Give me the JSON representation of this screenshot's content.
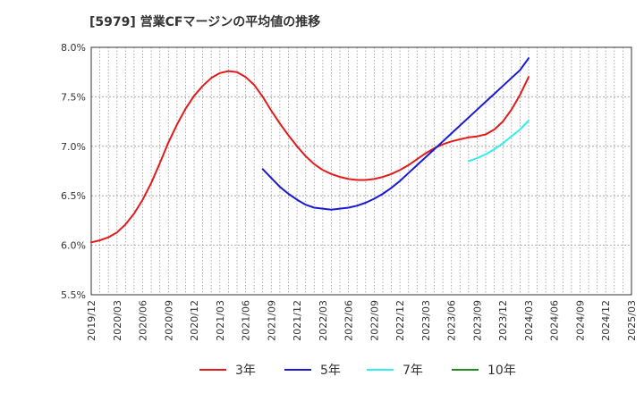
{
  "chart_data": {
    "type": "line",
    "title": "[5979]  営業CFマージンの平均値の推移",
    "xlabel": "",
    "ylabel": "",
    "x_ticks": [
      "2019/12",
      "2020/03",
      "2020/06",
      "2020/09",
      "2020/12",
      "2021/03",
      "2021/06",
      "2021/09",
      "2021/12",
      "2022/03",
      "2022/06",
      "2022/09",
      "2022/12",
      "2023/03",
      "2023/06",
      "2023/09",
      "2023/12",
      "2024/03",
      "2024/06",
      "2024/09",
      "2024/12",
      "2025/03"
    ],
    "y_ticks": [
      "5.5%",
      "6.0%",
      "6.5%",
      "7.0%",
      "7.5%",
      "8.0%"
    ],
    "ylim": [
      5.5,
      8.0
    ],
    "grid": true,
    "legend_position": "bottom",
    "series": [
      {
        "name": "3年",
        "color": "#e31a1c",
        "points": [
          [
            "2019/12",
            6.03
          ],
          [
            "2020/01",
            6.05
          ],
          [
            "2020/02",
            6.08
          ],
          [
            "2020/03",
            6.13
          ],
          [
            "2020/04",
            6.21
          ],
          [
            "2020/05",
            6.32
          ],
          [
            "2020/06",
            6.46
          ],
          [
            "2020/07",
            6.63
          ],
          [
            "2020/08",
            6.83
          ],
          [
            "2020/09",
            7.04
          ],
          [
            "2020/10",
            7.22
          ],
          [
            "2020/11",
            7.38
          ],
          [
            "2020/12",
            7.51
          ],
          [
            "2021/01",
            7.61
          ],
          [
            "2021/02",
            7.69
          ],
          [
            "2021/03",
            7.74
          ],
          [
            "2021/04",
            7.76
          ],
          [
            "2021/05",
            7.75
          ],
          [
            "2021/06",
            7.7
          ],
          [
            "2021/07",
            7.62
          ],
          [
            "2021/08",
            7.5
          ],
          [
            "2021/09",
            7.36
          ],
          [
            "2021/10",
            7.23
          ],
          [
            "2021/11",
            7.11
          ],
          [
            "2021/12",
            7.0
          ],
          [
            "2022/01",
            6.9
          ],
          [
            "2022/02",
            6.82
          ],
          [
            "2022/03",
            6.76
          ],
          [
            "2022/04",
            6.72
          ],
          [
            "2022/05",
            6.69
          ],
          [
            "2022/06",
            6.67
          ],
          [
            "2022/07",
            6.66
          ],
          [
            "2022/08",
            6.66
          ],
          [
            "2022/09",
            6.67
          ],
          [
            "2022/10",
            6.69
          ],
          [
            "2022/11",
            6.72
          ],
          [
            "2022/12",
            6.76
          ],
          [
            "2023/01",
            6.81
          ],
          [
            "2023/02",
            6.87
          ],
          [
            "2023/03",
            6.93
          ],
          [
            "2023/04",
            6.98
          ],
          [
            "2023/05",
            7.02
          ],
          [
            "2023/06",
            7.05
          ],
          [
            "2023/07",
            7.07
          ],
          [
            "2023/08",
            7.09
          ],
          [
            "2023/09",
            7.1
          ],
          [
            "2023/10",
            7.12
          ],
          [
            "2023/11",
            7.17
          ],
          [
            "2023/12",
            7.25
          ],
          [
            "2024/01",
            7.37
          ],
          [
            "2024/02",
            7.52
          ],
          [
            "2024/03",
            7.7
          ]
        ]
      },
      {
        "name": "5年",
        "color": "#1a1ad4",
        "points": [
          [
            "2021/08",
            6.77
          ],
          [
            "2021/09",
            6.68
          ],
          [
            "2021/10",
            6.59
          ],
          [
            "2021/11",
            6.52
          ],
          [
            "2021/12",
            6.46
          ],
          [
            "2022/01",
            6.41
          ],
          [
            "2022/02",
            6.38
          ],
          [
            "2022/03",
            6.37
          ],
          [
            "2022/04",
            6.36
          ],
          [
            "2022/05",
            6.37
          ],
          [
            "2022/06",
            6.38
          ],
          [
            "2022/07",
            6.4
          ],
          [
            "2022/08",
            6.43
          ],
          [
            "2022/09",
            6.47
          ],
          [
            "2022/10",
            6.52
          ],
          [
            "2022/11",
            6.58
          ],
          [
            "2022/12",
            6.65
          ],
          [
            "2023/01",
            6.73
          ],
          [
            "2023/02",
            6.81
          ],
          [
            "2023/03",
            6.89
          ],
          [
            "2023/04",
            6.97
          ],
          [
            "2023/05",
            7.05
          ],
          [
            "2023/06",
            7.13
          ],
          [
            "2023/07",
            7.21
          ],
          [
            "2023/08",
            7.29
          ],
          [
            "2023/09",
            7.37
          ],
          [
            "2023/10",
            7.45
          ],
          [
            "2023/11",
            7.53
          ],
          [
            "2023/12",
            7.61
          ],
          [
            "2024/01",
            7.69
          ],
          [
            "2024/02",
            7.77
          ],
          [
            "2024/03",
            7.89
          ]
        ]
      },
      {
        "name": "7年",
        "color": "#33eeee",
        "points": [
          [
            "2023/08",
            6.85
          ],
          [
            "2023/09",
            6.88
          ],
          [
            "2023/10",
            6.92
          ],
          [
            "2023/11",
            6.97
          ],
          [
            "2023/12",
            7.03
          ],
          [
            "2024/01",
            7.1
          ],
          [
            "2024/02",
            7.17
          ],
          [
            "2024/03",
            7.26
          ]
        ]
      },
      {
        "name": "10年",
        "color": "#228b22",
        "points": []
      }
    ]
  }
}
